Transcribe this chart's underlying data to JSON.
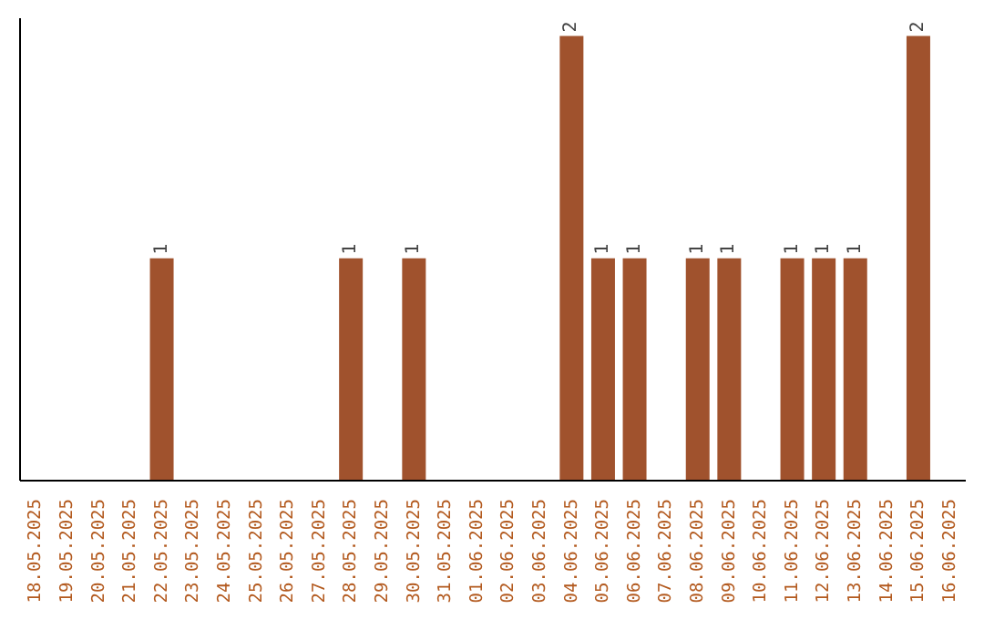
{
  "chart_data": {
    "type": "bar",
    "categories": [
      "18.05.2025",
      "19.05.2025",
      "20.05.2025",
      "21.05.2025",
      "22.05.2025",
      "23.05.2025",
      "24.05.2025",
      "25.05.2025",
      "26.05.2025",
      "27.05.2025",
      "28.05.2025",
      "29.05.2025",
      "30.05.2025",
      "31.05.2025",
      "01.06.2025",
      "02.06.2025",
      "03.06.2025",
      "04.06.2025",
      "05.06.2025",
      "06.06.2025",
      "07.06.2025",
      "08.06.2025",
      "09.06.2025",
      "10.06.2025",
      "11.06.2025",
      "12.06.2025",
      "13.06.2025",
      "14.06.2025",
      "15.06.2025",
      "16.06.2025"
    ],
    "values": [
      0,
      0,
      0,
      0,
      1,
      0,
      0,
      0,
      0,
      0,
      1,
      0,
      1,
      0,
      0,
      0,
      0,
      2,
      1,
      1,
      0,
      1,
      1,
      0,
      1,
      1,
      1,
      0,
      2,
      0
    ],
    "value_labels": [
      null,
      null,
      null,
      null,
      "1",
      null,
      null,
      null,
      null,
      null,
      "1",
      null,
      "1",
      null,
      null,
      null,
      null,
      "2",
      "1",
      "1",
      null,
      "1",
      "1",
      null,
      "1",
      "1",
      "1",
      null,
      "2",
      null
    ],
    "color": "#a0522d",
    "tick_labels": "x"
  }
}
